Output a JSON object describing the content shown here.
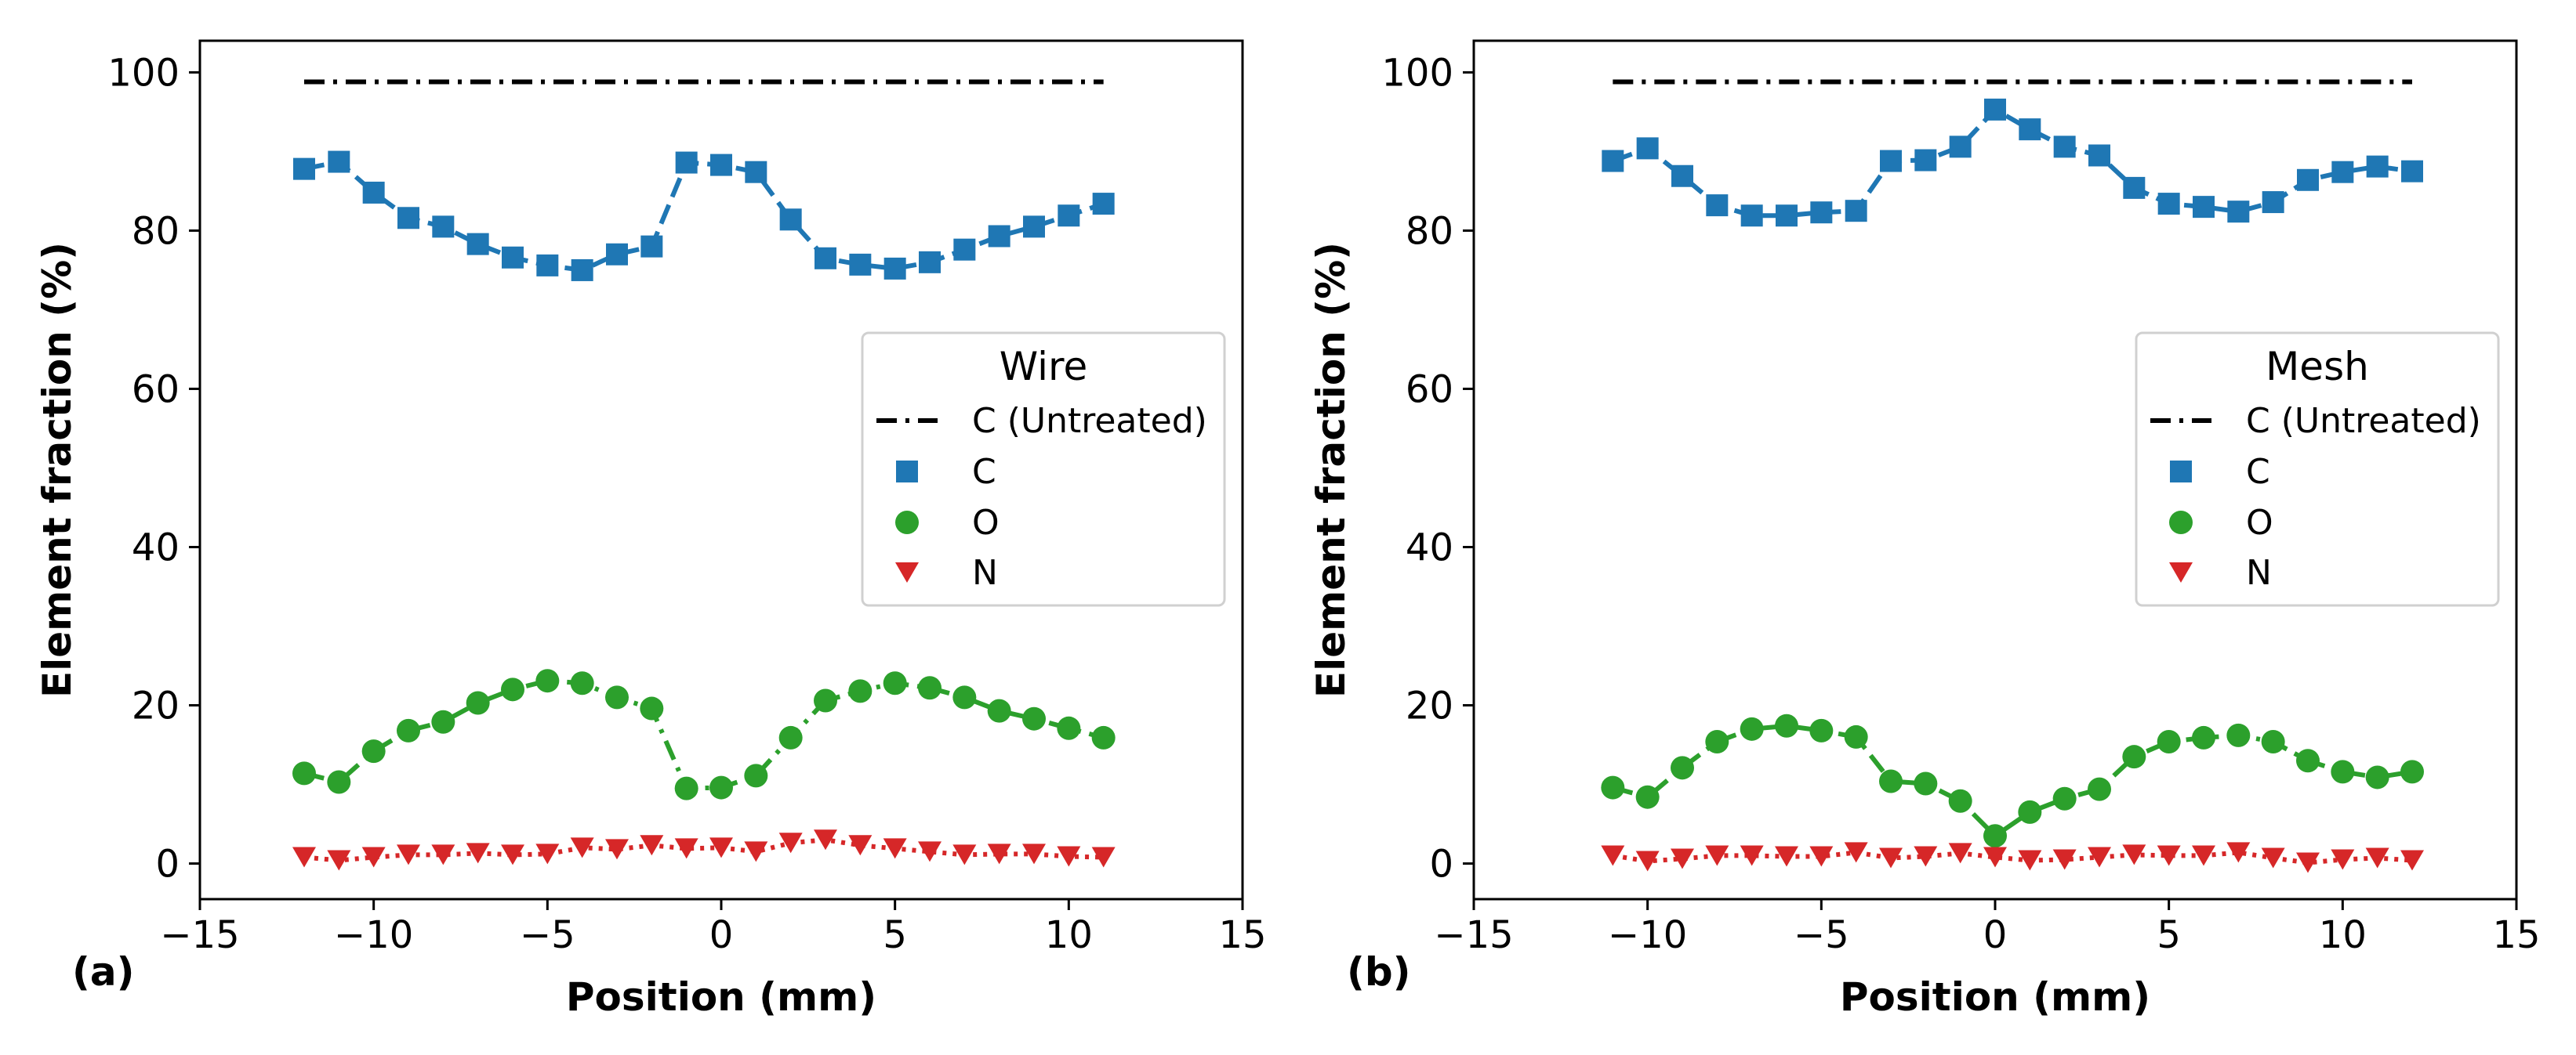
{
  "chart_data": [
    {
      "type": "scatter",
      "panel_label": "(a)",
      "xlabel": "Position (mm)",
      "ylabel": "Element fraction (%)",
      "xlim": [
        -15,
        15
      ],
      "ylim": [
        -4.5,
        104
      ],
      "xticks": [
        -15,
        -10,
        -5,
        0,
        5,
        10,
        15
      ],
      "xtick_labels": [
        "−15",
        "−10",
        "−5",
        "0",
        "5",
        "10",
        "15"
      ],
      "yticks": [
        0,
        20,
        40,
        60,
        80,
        100
      ],
      "ytick_labels": [
        "0",
        "20",
        "40",
        "60",
        "80",
        "100"
      ],
      "legend": {
        "title": "Wire",
        "location": "center-right",
        "entries": [
          "C (Untreated)",
          "C",
          "O",
          "N"
        ]
      },
      "series": [
        {
          "name": "C (Untreated)",
          "style": "dashdot-line",
          "color": "#000000",
          "x": [
            -12,
            11
          ],
          "y": [
            98.8,
            98.8
          ]
        },
        {
          "name": "C",
          "marker": "square",
          "line": "dashed",
          "color": "#1f77b4",
          "x": [
            -12,
            -11,
            -10,
            -9,
            -8,
            -7,
            -6,
            -5,
            -4,
            -3,
            -2,
            -1,
            0,
            1,
            2,
            3,
            4,
            5,
            6,
            7,
            8,
            9,
            10,
            11
          ],
          "y": [
            87.8,
            88.7,
            84.8,
            81.6,
            80.5,
            78.3,
            76.6,
            75.6,
            75.0,
            77.0,
            78.0,
            88.6,
            88.3,
            87.4,
            81.4,
            76.5,
            75.7,
            75.2,
            76.0,
            77.6,
            79.3,
            80.5,
            81.9,
            83.4
          ]
        },
        {
          "name": "O",
          "marker": "circle",
          "line": "dashdot",
          "color": "#2ca02c",
          "x": [
            -12,
            -11,
            -10,
            -9,
            -8,
            -7,
            -6,
            -5,
            -4,
            -3,
            -2,
            -1,
            0,
            1,
            2,
            3,
            4,
            5,
            6,
            7,
            8,
            9,
            10,
            11
          ],
          "y": [
            11.4,
            10.3,
            14.2,
            16.8,
            17.9,
            20.3,
            22.0,
            23.1,
            22.8,
            21.0,
            19.6,
            9.5,
            9.6,
            11.1,
            15.9,
            20.6,
            21.8,
            22.8,
            22.2,
            21.0,
            19.3,
            18.3,
            17.1,
            15.9
          ]
        },
        {
          "name": "N",
          "marker": "triangle-down",
          "line": "dotted",
          "color": "#d62728",
          "x": [
            -12,
            -11,
            -10,
            -9,
            -8,
            -7,
            -6,
            -5,
            -4,
            -3,
            -2,
            -1,
            0,
            1,
            2,
            3,
            4,
            5,
            6,
            7,
            8,
            9,
            10,
            11
          ],
          "y": [
            0.8,
            0.4,
            0.8,
            1.1,
            1.1,
            1.3,
            1.1,
            1.2,
            2.0,
            1.8,
            2.3,
            1.9,
            2.0,
            1.5,
            2.6,
            3.0,
            2.3,
            1.9,
            1.5,
            1.1,
            1.2,
            1.2,
            0.9,
            0.8
          ]
        }
      ]
    },
    {
      "type": "scatter",
      "panel_label": "(b)",
      "xlabel": "Position (mm)",
      "ylabel": "Element fraction (%)",
      "xlim": [
        -15,
        15
      ],
      "ylim": [
        -4.5,
        104
      ],
      "xticks": [
        -15,
        -10,
        -5,
        0,
        5,
        10,
        15
      ],
      "xtick_labels": [
        "−15",
        "−10",
        "−5",
        "0",
        "5",
        "10",
        "15"
      ],
      "yticks": [
        0,
        20,
        40,
        60,
        80,
        100
      ],
      "ytick_labels": [
        "0",
        "20",
        "40",
        "60",
        "80",
        "100"
      ],
      "legend": {
        "title": "Mesh",
        "location": "center-right",
        "entries": [
          "C (Untreated)",
          "C",
          "O",
          "N"
        ]
      },
      "series": [
        {
          "name": "C (Untreated)",
          "style": "dashdot-line",
          "color": "#000000",
          "x": [
            -11,
            12
          ],
          "y": [
            98.8,
            98.8
          ]
        },
        {
          "name": "C",
          "marker": "square",
          "line": "dashed",
          "color": "#1f77b4",
          "x": [
            -11,
            -10,
            -9,
            -8,
            -7,
            -6,
            -5,
            -4,
            -3,
            -2,
            -1,
            0,
            1,
            2,
            3,
            4,
            5,
            6,
            7,
            8,
            9,
            10,
            11,
            12
          ],
          "y": [
            88.8,
            90.4,
            86.9,
            83.2,
            81.9,
            81.9,
            82.3,
            82.5,
            88.8,
            88.9,
            90.6,
            95.3,
            92.8,
            90.6,
            89.5,
            85.4,
            83.4,
            83.0,
            82.4,
            83.6,
            86.4,
            87.4,
            88.1,
            87.5
          ]
        },
        {
          "name": "O",
          "marker": "circle",
          "line": "dashdot",
          "color": "#2ca02c",
          "x": [
            -11,
            -10,
            -9,
            -8,
            -7,
            -6,
            -5,
            -4,
            -3,
            -2,
            -1,
            0,
            1,
            2,
            3,
            4,
            5,
            6,
            7,
            8,
            9,
            10,
            11,
            12
          ],
          "y": [
            9.6,
            8.4,
            12.1,
            15.4,
            17.0,
            17.4,
            16.8,
            16.0,
            10.4,
            10.1,
            7.9,
            3.5,
            6.5,
            8.2,
            9.4,
            13.5,
            15.4,
            15.9,
            16.2,
            15.4,
            13.0,
            11.6,
            10.9,
            11.6
          ]
        },
        {
          "name": "N",
          "marker": "triangle-down",
          "line": "dotted",
          "color": "#d62728",
          "x": [
            -11,
            -10,
            -9,
            -8,
            -7,
            -6,
            -5,
            -4,
            -3,
            -2,
            -1,
            0,
            1,
            2,
            3,
            4,
            5,
            6,
            7,
            8,
            9,
            10,
            11,
            12
          ],
          "y": [
            1.0,
            0.3,
            0.6,
            1.0,
            1.0,
            0.9,
            0.9,
            1.4,
            0.7,
            0.9,
            1.3,
            0.8,
            0.4,
            0.5,
            0.8,
            1.1,
            1.0,
            1.0,
            1.4,
            0.7,
            0.1,
            0.5,
            0.7,
            0.4
          ]
        }
      ]
    }
  ]
}
